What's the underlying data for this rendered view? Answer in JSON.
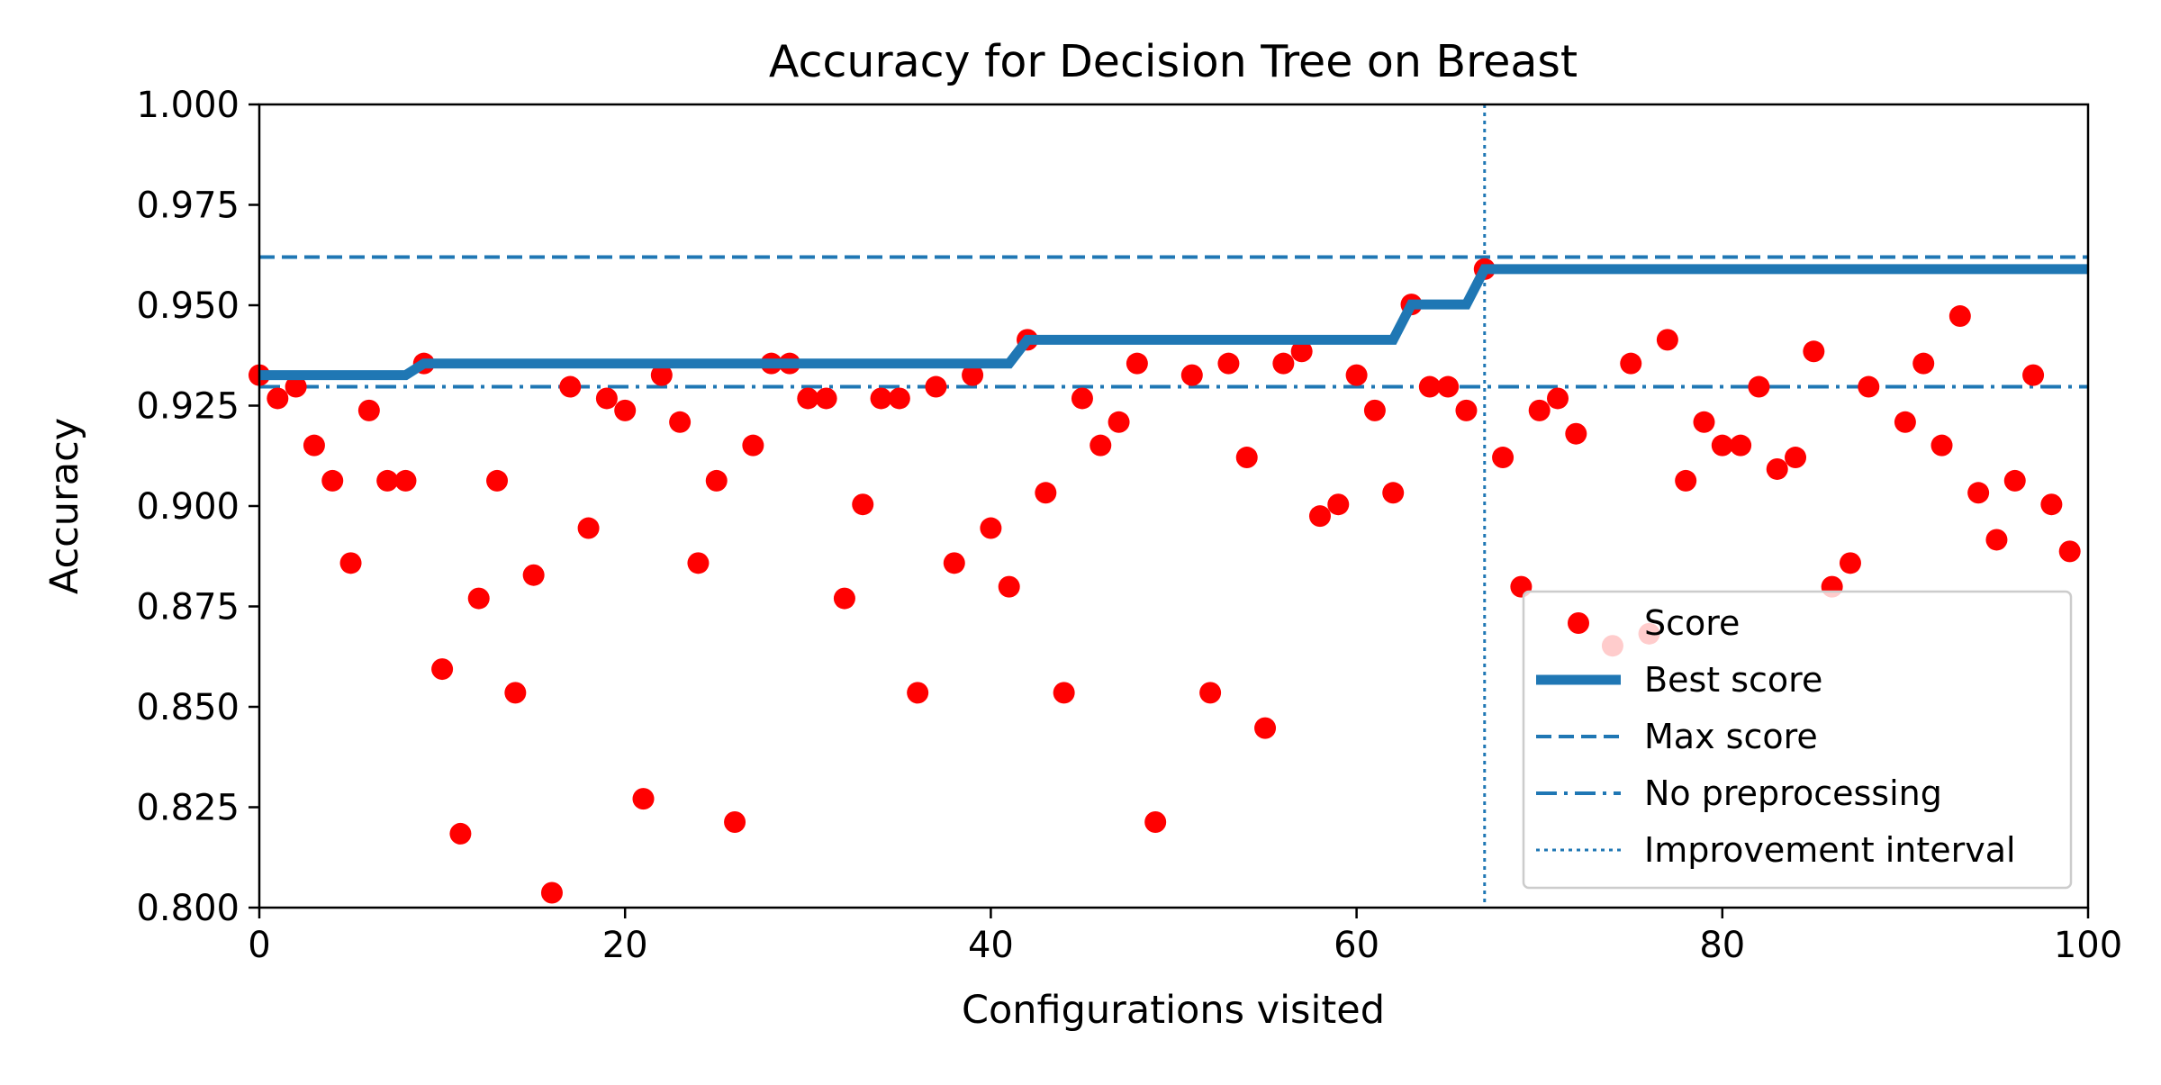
{
  "chart_data": {
    "type": "scatter",
    "title": "Accuracy for Decision Tree on Breast",
    "xlabel": "Configurations visited",
    "ylabel": "Accuracy",
    "xlim": [
      0,
      100
    ],
    "ylim": [
      0.8,
      1.0
    ],
    "x_ticks": [
      0,
      20,
      40,
      60,
      80,
      100
    ],
    "x_tick_labels": [
      "0",
      "20",
      "40",
      "60",
      "80",
      "100"
    ],
    "y_ticks": [
      0.8,
      0.825,
      0.85,
      0.875,
      0.9,
      0.925,
      0.95,
      0.975,
      1.0
    ],
    "y_tick_labels": [
      "0.800",
      "0.825",
      "0.850",
      "0.875",
      "0.900",
      "0.925",
      "0.950",
      "0.975",
      "1.000"
    ],
    "grid": false,
    "legend_position": "lower right",
    "colors": {
      "score": "#ff0000",
      "lines": "#1f77b4"
    },
    "series": [
      {
        "name": "Score",
        "kind": "points",
        "x": [
          0,
          1,
          2,
          3,
          4,
          5,
          6,
          7,
          8,
          9,
          10,
          11,
          12,
          13,
          14,
          15,
          16,
          17,
          18,
          19,
          20,
          21,
          22,
          23,
          24,
          25,
          26,
          27,
          28,
          29,
          30,
          31,
          32,
          33,
          34,
          35,
          36,
          37,
          38,
          39,
          40,
          41,
          42,
          43,
          44,
          45,
          46,
          47,
          48,
          49,
          51,
          52,
          53,
          54,
          55,
          56,
          57,
          58,
          59,
          60,
          61,
          62,
          63,
          64,
          65,
          66,
          67,
          68,
          69,
          70,
          71,
          72,
          74,
          75,
          76,
          77,
          78,
          79,
          80,
          81,
          82,
          83,
          84,
          85,
          86,
          87,
          88,
          90,
          91,
          92,
          93,
          94,
          95,
          96,
          97,
          98,
          99
        ],
        "y": [
          0.9326,
          0.9268,
          0.9297,
          0.9151,
          0.9063,
          0.8858,
          0.9238,
          0.9063,
          0.9063,
          0.9355,
          0.8594,
          0.8184,
          0.877,
          0.9063,
          0.8535,
          0.8828,
          0.8037,
          0.9297,
          0.8945,
          0.9268,
          0.9238,
          0.8271,
          0.9326,
          0.9209,
          0.8858,
          0.9063,
          0.8213,
          0.9151,
          0.9355,
          0.9355,
          0.9268,
          0.9268,
          0.877,
          0.9004,
          0.9268,
          0.9268,
          0.8535,
          0.9297,
          0.8858,
          0.9326,
          0.8945,
          0.8799,
          0.9414,
          0.9033,
          0.8535,
          0.9268,
          0.9151,
          0.9209,
          0.9355,
          0.8213,
          0.9326,
          0.8535,
          0.9355,
          0.9121,
          0.8447,
          0.9355,
          0.9385,
          0.8975,
          0.9004,
          0.9326,
          0.9238,
          0.9033,
          0.9502,
          0.9297,
          0.9297,
          0.9238,
          0.959,
          0.9121,
          0.8799,
          0.9238,
          0.9268,
          0.918,
          0.8652,
          0.9355,
          0.8682,
          0.9414,
          0.9063,
          0.9209,
          0.9151,
          0.9151,
          0.9297,
          0.9092,
          0.9121,
          0.9385,
          0.8799,
          0.8858,
          0.9297,
          0.9209,
          0.9355,
          0.9151,
          0.9473,
          0.9033,
          0.8916,
          0.9063,
          0.9326,
          0.9004,
          0.8887
        ]
      },
      {
        "name": "Best score",
        "kind": "step",
        "x": [
          0,
          8,
          9,
          41,
          42,
          62,
          63,
          66,
          67,
          100
        ],
        "y": [
          0.9326,
          0.9326,
          0.9355,
          0.9355,
          0.9414,
          0.9414,
          0.9502,
          0.9502,
          0.959,
          0.959
        ]
      },
      {
        "name": "Max score",
        "kind": "hline",
        "y": 0.962
      },
      {
        "name": "No preprocessing",
        "kind": "hline",
        "y": 0.9297
      },
      {
        "name": "Improvement interval",
        "kind": "vline",
        "x": 67
      }
    ]
  }
}
